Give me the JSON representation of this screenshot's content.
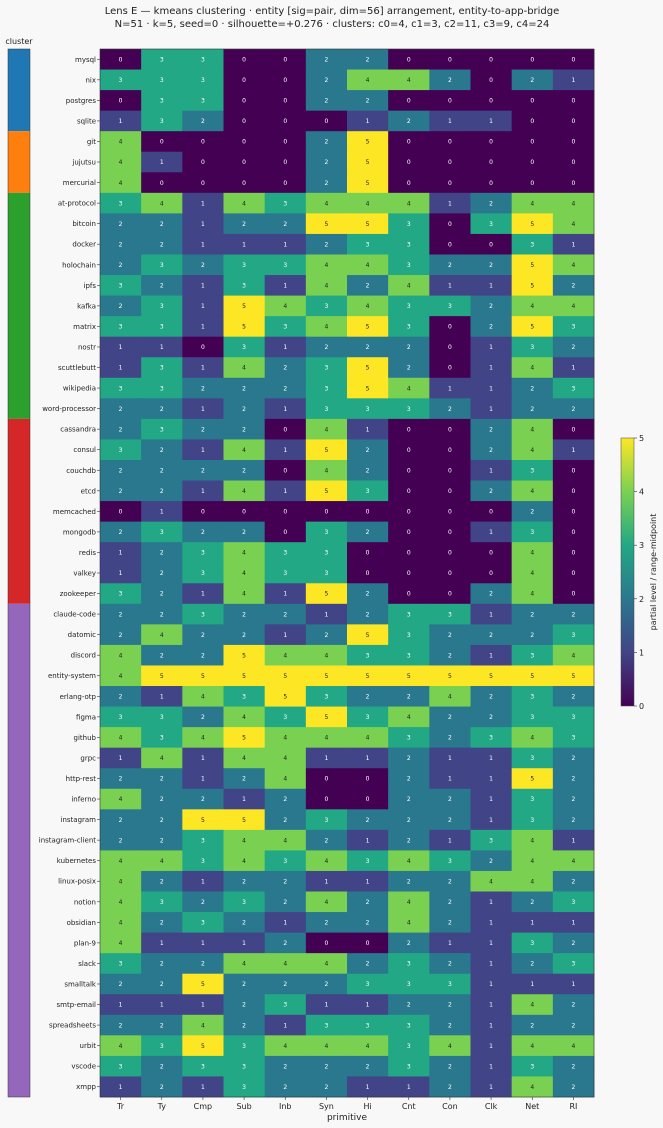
{
  "chart_data": {
    "type": "heatmap",
    "title": "Lens E — kmeans clustering · entity [sig=pair, dim=56] arrangement, entity-to-app-bridge",
    "subtitle": "N=51 · k=5, seed=0 · silhouette=+0.276 · clusters: c0=4, c1=3, c2=11, c3=9, c4=24",
    "xlabel": "primitive",
    "cluster_label": "cluster",
    "colorbar_label": "partial level / range-midpoint",
    "colorbar_ticks": [
      "0",
      "1",
      "2",
      "3",
      "4",
      "5"
    ],
    "zlim": [
      0,
      5
    ],
    "colormap": "viridis",
    "columns": [
      "Tr",
      "Ty",
      "Cmp",
      "Sub",
      "Inb",
      "Syn",
      "Hi",
      "Cnt",
      "Con",
      "Clk",
      "Net",
      "RI"
    ],
    "cluster_colors": [
      "#1f77b4",
      "#ff7f0e",
      "#2ca02c",
      "#d62728",
      "#9467bd"
    ],
    "rows": [
      {
        "name": "mysql",
        "cluster": 0,
        "values": [
          0,
          3,
          3,
          0,
          0,
          2,
          2,
          0,
          0,
          0,
          0,
          0
        ]
      },
      {
        "name": "nix",
        "cluster": 0,
        "values": [
          3,
          3,
          3,
          0,
          0,
          2,
          4,
          4,
          2,
          0,
          2,
          1
        ]
      },
      {
        "name": "postgres",
        "cluster": 0,
        "values": [
          0,
          3,
          3,
          0,
          0,
          2,
          2,
          0,
          0,
          0,
          0,
          0
        ]
      },
      {
        "name": "sqlite",
        "cluster": 0,
        "values": [
          1,
          3,
          2,
          0,
          0,
          0,
          1,
          2,
          1,
          1,
          0,
          0
        ]
      },
      {
        "name": "git",
        "cluster": 1,
        "values": [
          4,
          0,
          0,
          0,
          0,
          2,
          5,
          0,
          0,
          0,
          0,
          0
        ]
      },
      {
        "name": "jujutsu",
        "cluster": 1,
        "values": [
          4,
          1,
          0,
          0,
          0,
          2,
          5,
          0,
          0,
          0,
          0,
          0
        ]
      },
      {
        "name": "mercurial",
        "cluster": 1,
        "values": [
          4,
          0,
          0,
          0,
          0,
          2,
          5,
          0,
          0,
          0,
          0,
          0
        ]
      },
      {
        "name": "at-protocol",
        "cluster": 2,
        "values": [
          3,
          4,
          1,
          4,
          3,
          4,
          4,
          4,
          1,
          2,
          4,
          4
        ]
      },
      {
        "name": "bitcoin",
        "cluster": 2,
        "values": [
          2,
          2,
          1,
          2,
          2,
          5,
          5,
          3,
          0,
          3,
          5,
          4
        ]
      },
      {
        "name": "docker",
        "cluster": 2,
        "values": [
          2,
          2,
          1,
          1,
          1,
          2,
          3,
          3,
          0,
          0,
          3,
          1
        ]
      },
      {
        "name": "holochain",
        "cluster": 2,
        "values": [
          2,
          3,
          2,
          3,
          3,
          4,
          4,
          3,
          2,
          2,
          5,
          4
        ]
      },
      {
        "name": "ipfs",
        "cluster": 2,
        "values": [
          3,
          2,
          1,
          3,
          1,
          4,
          2,
          4,
          1,
          1,
          5,
          2
        ]
      },
      {
        "name": "kafka",
        "cluster": 2,
        "values": [
          2,
          3,
          1,
          5,
          4,
          3,
          4,
          3,
          3,
          2,
          4,
          4
        ]
      },
      {
        "name": "matrix",
        "cluster": 2,
        "values": [
          3,
          3,
          1,
          5,
          3,
          4,
          5,
          3,
          0,
          2,
          5,
          3
        ]
      },
      {
        "name": "nostr",
        "cluster": 2,
        "values": [
          1,
          1,
          0,
          3,
          1,
          2,
          2,
          2,
          0,
          1,
          3,
          2
        ]
      },
      {
        "name": "scuttlebutt",
        "cluster": 2,
        "values": [
          1,
          3,
          1,
          4,
          2,
          3,
          5,
          2,
          0,
          1,
          4,
          1
        ]
      },
      {
        "name": "wikipedia",
        "cluster": 2,
        "values": [
          3,
          3,
          2,
          2,
          2,
          3,
          5,
          4,
          1,
          1,
          2,
          3
        ]
      },
      {
        "name": "word-processor",
        "cluster": 2,
        "values": [
          2,
          2,
          1,
          2,
          1,
          3,
          3,
          3,
          2,
          1,
          2,
          2
        ]
      },
      {
        "name": "cassandra",
        "cluster": 3,
        "values": [
          2,
          3,
          2,
          2,
          0,
          4,
          1,
          0,
          0,
          2,
          4,
          0
        ]
      },
      {
        "name": "consul",
        "cluster": 3,
        "values": [
          3,
          2,
          1,
          4,
          1,
          5,
          2,
          0,
          0,
          2,
          4,
          1
        ]
      },
      {
        "name": "couchdb",
        "cluster": 3,
        "values": [
          2,
          2,
          2,
          2,
          0,
          4,
          2,
          0,
          0,
          1,
          3,
          0
        ]
      },
      {
        "name": "etcd",
        "cluster": 3,
        "values": [
          2,
          2,
          1,
          4,
          1,
          5,
          3,
          0,
          0,
          2,
          4,
          0
        ]
      },
      {
        "name": "memcached",
        "cluster": 3,
        "values": [
          0,
          1,
          0,
          0,
          0,
          0,
          0,
          0,
          0,
          0,
          2,
          0
        ]
      },
      {
        "name": "mongodb",
        "cluster": 3,
        "values": [
          2,
          3,
          2,
          2,
          0,
          3,
          2,
          0,
          0,
          1,
          3,
          0
        ]
      },
      {
        "name": "redis",
        "cluster": 3,
        "values": [
          1,
          2,
          3,
          4,
          3,
          3,
          0,
          0,
          0,
          0,
          4,
          0
        ]
      },
      {
        "name": "valkey",
        "cluster": 3,
        "values": [
          1,
          2,
          3,
          4,
          3,
          3,
          0,
          0,
          0,
          0,
          4,
          0
        ]
      },
      {
        "name": "zookeeper",
        "cluster": 3,
        "values": [
          3,
          2,
          1,
          4,
          1,
          5,
          2,
          0,
          0,
          2,
          4,
          0
        ]
      },
      {
        "name": "claude-code",
        "cluster": 4,
        "values": [
          2,
          2,
          3,
          2,
          2,
          1,
          2,
          3,
          3,
          1,
          2,
          2
        ]
      },
      {
        "name": "datomic",
        "cluster": 4,
        "values": [
          2,
          4,
          2,
          2,
          1,
          2,
          5,
          3,
          2,
          2,
          2,
          3
        ]
      },
      {
        "name": "discord",
        "cluster": 4,
        "values": [
          4,
          2,
          2,
          5,
          4,
          4,
          3,
          3,
          2,
          1,
          3,
          4
        ]
      },
      {
        "name": "entity-system",
        "cluster": 4,
        "values": [
          4,
          5,
          5,
          5,
          5,
          5,
          5,
          5,
          5,
          5,
          5,
          5
        ]
      },
      {
        "name": "erlang-otp",
        "cluster": 4,
        "values": [
          2,
          1,
          4,
          3,
          5,
          3,
          2,
          2,
          4,
          2,
          3,
          2
        ]
      },
      {
        "name": "figma",
        "cluster": 4,
        "values": [
          3,
          3,
          2,
          4,
          3,
          5,
          3,
          4,
          2,
          2,
          3,
          3
        ]
      },
      {
        "name": "github",
        "cluster": 4,
        "values": [
          4,
          3,
          4,
          5,
          4,
          4,
          4,
          3,
          2,
          3,
          4,
          3
        ]
      },
      {
        "name": "grpc",
        "cluster": 4,
        "values": [
          1,
          4,
          1,
          4,
          4,
          1,
          1,
          2,
          1,
          1,
          3,
          2
        ]
      },
      {
        "name": "http-rest",
        "cluster": 4,
        "values": [
          2,
          2,
          1,
          2,
          4,
          0,
          0,
          2,
          1,
          1,
          5,
          2
        ]
      },
      {
        "name": "inferno",
        "cluster": 4,
        "values": [
          4,
          2,
          2,
          1,
          2,
          0,
          0,
          2,
          2,
          1,
          3,
          2
        ]
      },
      {
        "name": "instagram",
        "cluster": 4,
        "values": [
          2,
          2,
          5,
          5,
          2,
          3,
          2,
          2,
          2,
          1,
          3,
          2
        ]
      },
      {
        "name": "instagram-client",
        "cluster": 4,
        "values": [
          2,
          2,
          3,
          4,
          4,
          2,
          1,
          2,
          1,
          3,
          4,
          1
        ]
      },
      {
        "name": "kubernetes",
        "cluster": 4,
        "values": [
          4,
          4,
          3,
          4,
          3,
          4,
          3,
          4,
          3,
          2,
          4,
          4
        ]
      },
      {
        "name": "linux-posix",
        "cluster": 4,
        "values": [
          4,
          2,
          1,
          2,
          2,
          1,
          1,
          2,
          2,
          4,
          4,
          2
        ]
      },
      {
        "name": "notion",
        "cluster": 4,
        "values": [
          4,
          3,
          2,
          3,
          2,
          4,
          2,
          4,
          2,
          1,
          2,
          3
        ]
      },
      {
        "name": "obsidian",
        "cluster": 4,
        "values": [
          4,
          2,
          3,
          2,
          1,
          2,
          2,
          4,
          2,
          1,
          1,
          1
        ]
      },
      {
        "name": "plan-9",
        "cluster": 4,
        "values": [
          4,
          1,
          1,
          1,
          2,
          0,
          0,
          2,
          1,
          1,
          3,
          2
        ]
      },
      {
        "name": "slack",
        "cluster": 4,
        "values": [
          3,
          2,
          2,
          4,
          4,
          4,
          2,
          3,
          2,
          1,
          2,
          3
        ]
      },
      {
        "name": "smalltalk",
        "cluster": 4,
        "values": [
          2,
          2,
          5,
          2,
          2,
          2,
          3,
          3,
          3,
          1,
          1,
          1
        ]
      },
      {
        "name": "smtp-email",
        "cluster": 4,
        "values": [
          1,
          1,
          1,
          2,
          3,
          1,
          1,
          2,
          2,
          1,
          4,
          2
        ]
      },
      {
        "name": "spreadsheets",
        "cluster": 4,
        "values": [
          2,
          2,
          4,
          2,
          1,
          3,
          3,
          3,
          2,
          1,
          2,
          2
        ]
      },
      {
        "name": "urbit",
        "cluster": 4,
        "values": [
          4,
          3,
          5,
          3,
          4,
          4,
          4,
          3,
          4,
          1,
          4,
          4
        ]
      },
      {
        "name": "vscode",
        "cluster": 4,
        "values": [
          3,
          2,
          3,
          3,
          2,
          2,
          2,
          3,
          2,
          1,
          3,
          2
        ]
      },
      {
        "name": "xmpp",
        "cluster": 4,
        "values": [
          1,
          2,
          1,
          3,
          2,
          2,
          1,
          1,
          2,
          1,
          4,
          2
        ]
      }
    ]
  }
}
